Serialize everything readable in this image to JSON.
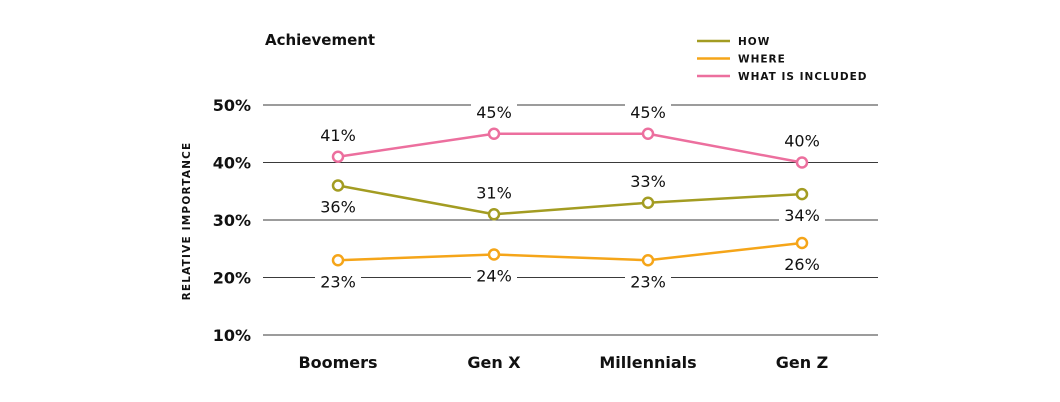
{
  "chart_data": {
    "type": "line",
    "title": "Achievement",
    "xlabel": "",
    "ylabel": "RELATIVE IMPORTANCE",
    "categories": [
      "Boomers",
      "Gen X",
      "Millennials",
      "Gen Z"
    ],
    "ylim": [
      10,
      50
    ],
    "yticks": [
      10,
      20,
      30,
      40,
      50
    ],
    "ytick_labels": [
      "10%",
      "20%",
      "30%",
      "40%",
      "50%"
    ],
    "grid": true,
    "legend_position": "top-right",
    "series": [
      {
        "name": "HOW",
        "color": "#a39c22",
        "values": [
          36,
          31,
          33,
          34.5
        ],
        "labels": [
          "36%",
          "31%",
          "33%",
          "34%"
        ],
        "label_pos": [
          "below",
          "above",
          "above",
          "below"
        ]
      },
      {
        "name": "WHERE",
        "color": "#f5a519",
        "values": [
          23,
          24,
          23,
          26
        ],
        "labels": [
          "23%",
          "24%",
          "23%",
          "26%"
        ],
        "label_pos": [
          "below",
          "below",
          "below",
          "below"
        ]
      },
      {
        "name": "WHAT IS INCLUDED",
        "color": "#ec6f9e",
        "values": [
          41,
          45,
          45,
          40
        ],
        "labels": [
          "41%",
          "45%",
          "45%",
          "40%"
        ],
        "label_pos": [
          "above",
          "above",
          "above",
          "above"
        ]
      }
    ]
  }
}
